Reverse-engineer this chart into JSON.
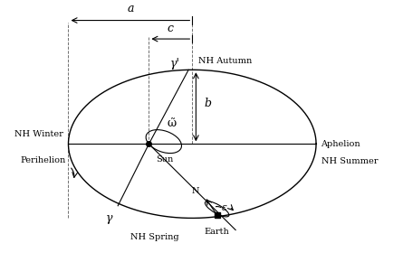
{
  "ellipse_a": 1.0,
  "ellipse_b": 0.6,
  "focus_c": 0.35,
  "bg_color": "#ffffff",
  "line_color": "#000000",
  "labels": {
    "perihelion": "Perihelion",
    "aphelion": "Aphelion",
    "sun": "Sun",
    "earth": "Earth",
    "nh_winter": "NH Winter",
    "nh_summer": "NH Summer",
    "nh_autumn": "NH Autumn",
    "nh_spring": "NH Spring",
    "a_label": "a",
    "c_label": "c",
    "b_label": "b",
    "gamma_prime": "γ'",
    "gamma": "γ",
    "omega": "ω̃",
    "epsilon": "ε",
    "N_label": "N"
  },
  "figsize": [
    4.45,
    2.9
  ],
  "dpi": 100
}
